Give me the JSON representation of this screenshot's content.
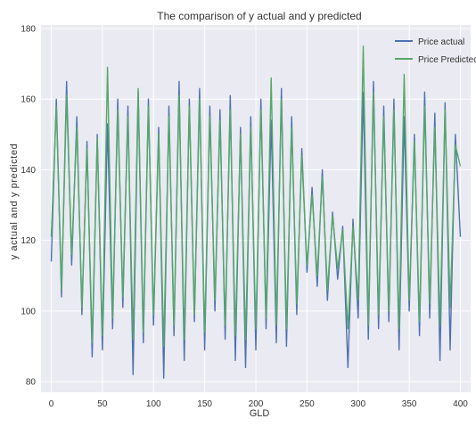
{
  "chart_data": {
    "type": "line",
    "title": "The comparison of y actual and y predicted",
    "xlabel": "GLD",
    "ylabel": "y actual and y predicted",
    "xlim": [
      -10,
      410
    ],
    "ylim": [
      77,
      181
    ],
    "xticks": [
      0,
      50,
      100,
      150,
      200,
      250,
      300,
      350,
      400
    ],
    "yticks": [
      80,
      100,
      120,
      140,
      160,
      180
    ],
    "grid": true,
    "legend_position": "top-right",
    "background": "#EAEAF2",
    "series": [
      {
        "name": "Price actual",
        "color": "#4C72B0",
        "x": [
          0,
          5,
          10,
          15,
          20,
          25,
          30,
          35,
          40,
          45,
          50,
          55,
          60,
          65,
          70,
          75,
          80,
          85,
          90,
          95,
          100,
          105,
          110,
          115,
          120,
          125,
          130,
          135,
          140,
          145,
          150,
          155,
          160,
          165,
          170,
          175,
          180,
          185,
          190,
          195,
          200,
          205,
          210,
          215,
          220,
          225,
          230,
          235,
          240,
          245,
          250,
          255,
          260,
          265,
          270,
          275,
          280,
          285,
          290,
          295,
          300,
          305,
          310,
          315,
          320,
          325,
          330,
          335,
          340,
          345,
          350,
          355,
          360,
          365,
          370,
          375,
          380,
          385,
          390,
          395,
          400
        ],
        "values": [
          114,
          160,
          104,
          165,
          113,
          155,
          99,
          148,
          87,
          150,
          89,
          153,
          95,
          160,
          101,
          158,
          82,
          162,
          91,
          160,
          96,
          152,
          81,
          158,
          93,
          165,
          86,
          160,
          97,
          163,
          89,
          158,
          100,
          157,
          92,
          161,
          86,
          152,
          84,
          155,
          89,
          160,
          95,
          154,
          91,
          163,
          90,
          155,
          99,
          146,
          111,
          135,
          107,
          140,
          103,
          128,
          109,
          124,
          84,
          126,
          98,
          162,
          92,
          165,
          95,
          158,
          97,
          160,
          89,
          155,
          100,
          150,
          93,
          162,
          98,
          156,
          86,
          159,
          89,
          150,
          121
        ]
      },
      {
        "name": "Price Predicted",
        "color": "#55A868",
        "x": [
          0,
          5,
          10,
          15,
          20,
          25,
          30,
          35,
          40,
          45,
          50,
          55,
          60,
          65,
          70,
          75,
          80,
          85,
          90,
          95,
          100,
          105,
          110,
          115,
          120,
          125,
          130,
          135,
          140,
          145,
          150,
          155,
          160,
          165,
          170,
          175,
          180,
          185,
          190,
          195,
          200,
          205,
          210,
          215,
          220,
          225,
          230,
          235,
          240,
          245,
          250,
          255,
          260,
          265,
          270,
          275,
          280,
          285,
          290,
          295,
          300,
          305,
          310,
          315,
          320,
          325,
          330,
          335,
          340,
          345,
          350,
          355,
          360,
          365,
          370,
          375,
          380,
          385,
          390,
          395,
          400
        ],
        "values": [
          121,
          158,
          106,
          161,
          116,
          152,
          101,
          146,
          91,
          149,
          93,
          169,
          98,
          157,
          104,
          155,
          92,
          163,
          94,
          158,
          99,
          150,
          90,
          155,
          96,
          161,
          92,
          158,
          99,
          160,
          94,
          155,
          103,
          154,
          96,
          157,
          93,
          150,
          92,
          152,
          95,
          157,
          98,
          166,
          96,
          160,
          95,
          152,
          102,
          144,
          113,
          133,
          110,
          138,
          106,
          127,
          112,
          123,
          95,
          124,
          103,
          175,
          96,
          162,
          99,
          155,
          100,
          157,
          95,
          167,
          103,
          148,
          97,
          158,
          102,
          152,
          96,
          157,
          101,
          147,
          141
        ]
      }
    ]
  }
}
